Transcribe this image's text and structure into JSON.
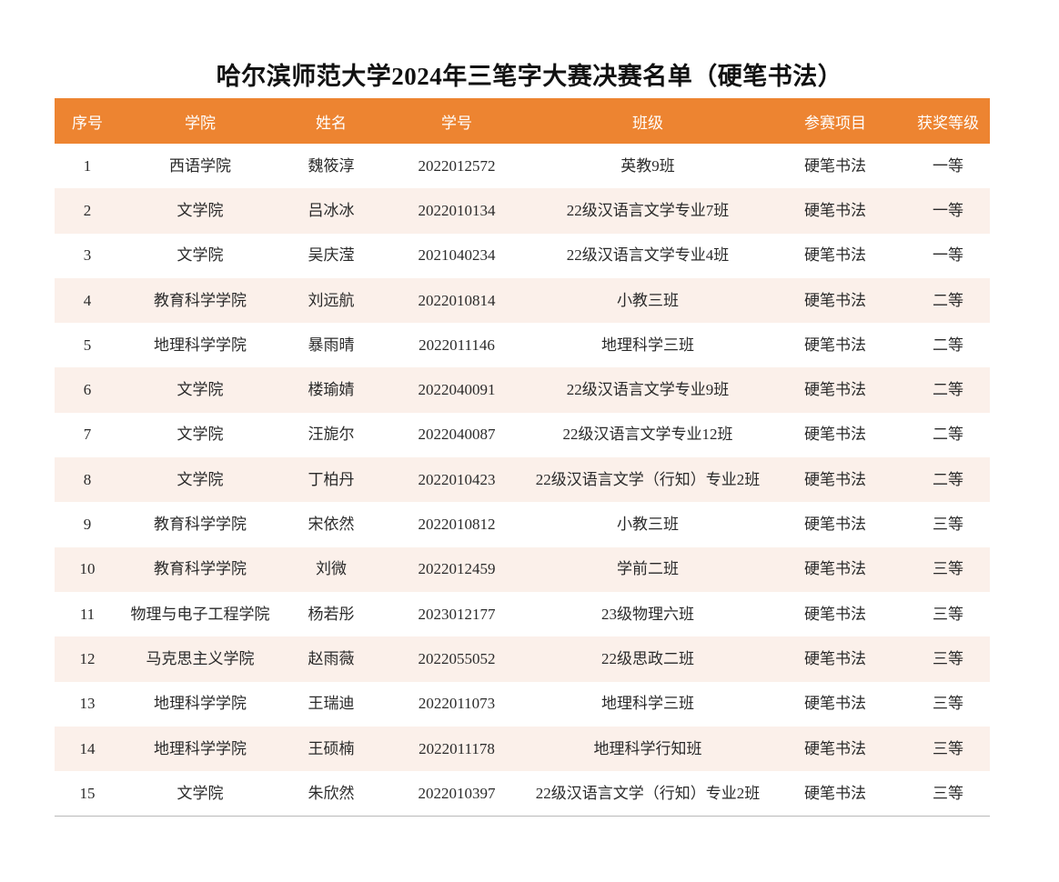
{
  "title": "哈尔滨师范大学2024年三笔字大赛决赛名单（硬笔书法）",
  "header_color": "#ed8431",
  "columns": [
    "序号",
    "学院",
    "姓名",
    "学号",
    "班级",
    "参赛项目",
    "获奖等级"
  ],
  "rows": [
    [
      "1",
      "西语学院",
      "魏筱淳",
      "2022012572",
      "英教9班",
      "硬笔书法",
      "一等"
    ],
    [
      "2",
      "文学院",
      "吕冰冰",
      "2022010134",
      "22级汉语言文学专业7班",
      "硬笔书法",
      "一等"
    ],
    [
      "3",
      "文学院",
      "吴庆滢",
      "2021040234",
      "22级汉语言文学专业4班",
      "硬笔书法",
      "一等"
    ],
    [
      "4",
      "教育科学学院",
      "刘远航",
      "2022010814",
      "小教三班",
      "硬笔书法",
      "二等"
    ],
    [
      "5",
      "地理科学学院",
      "暴雨晴",
      "2022011146",
      "地理科学三班",
      "硬笔书法",
      "二等"
    ],
    [
      "6",
      "文学院",
      "楼瑜婧",
      "2022040091",
      "22级汉语言文学专业9班",
      "硬笔书法",
      "二等"
    ],
    [
      "7",
      "文学院",
      "汪旎尔",
      "2022040087",
      "22级汉语言文学专业12班",
      "硬笔书法",
      "二等"
    ],
    [
      "8",
      "文学院",
      "丁柏丹",
      "2022010423",
      "22级汉语言文学（行知）专业2班",
      "硬笔书法",
      "二等"
    ],
    [
      "9",
      "教育科学学院",
      "宋依然",
      "2022010812",
      "小教三班",
      "硬笔书法",
      "三等"
    ],
    [
      "10",
      "教育科学学院",
      "刘微",
      "2022012459",
      "学前二班",
      "硬笔书法",
      "三等"
    ],
    [
      "11",
      "物理与电子工程学院",
      "杨若彤",
      "2023012177",
      "23级物理六班",
      "硬笔书法",
      "三等"
    ],
    [
      "12",
      "马克思主义学院",
      "赵雨薇",
      "2022055052",
      "22级思政二班",
      "硬笔书法",
      "三等"
    ],
    [
      "13",
      "地理科学学院",
      "王瑞迪",
      "2022011073",
      "地理科学三班",
      "硬笔书法",
      "三等"
    ],
    [
      "14",
      "地理科学学院",
      "王硕楠",
      "2022011178",
      "地理科学行知班",
      "硬笔书法",
      "三等"
    ],
    [
      "15",
      "文学院",
      "朱欣然",
      "2022010397",
      "22级汉语言文学（行知）专业2班",
      "硬笔书法",
      "三等"
    ]
  ]
}
